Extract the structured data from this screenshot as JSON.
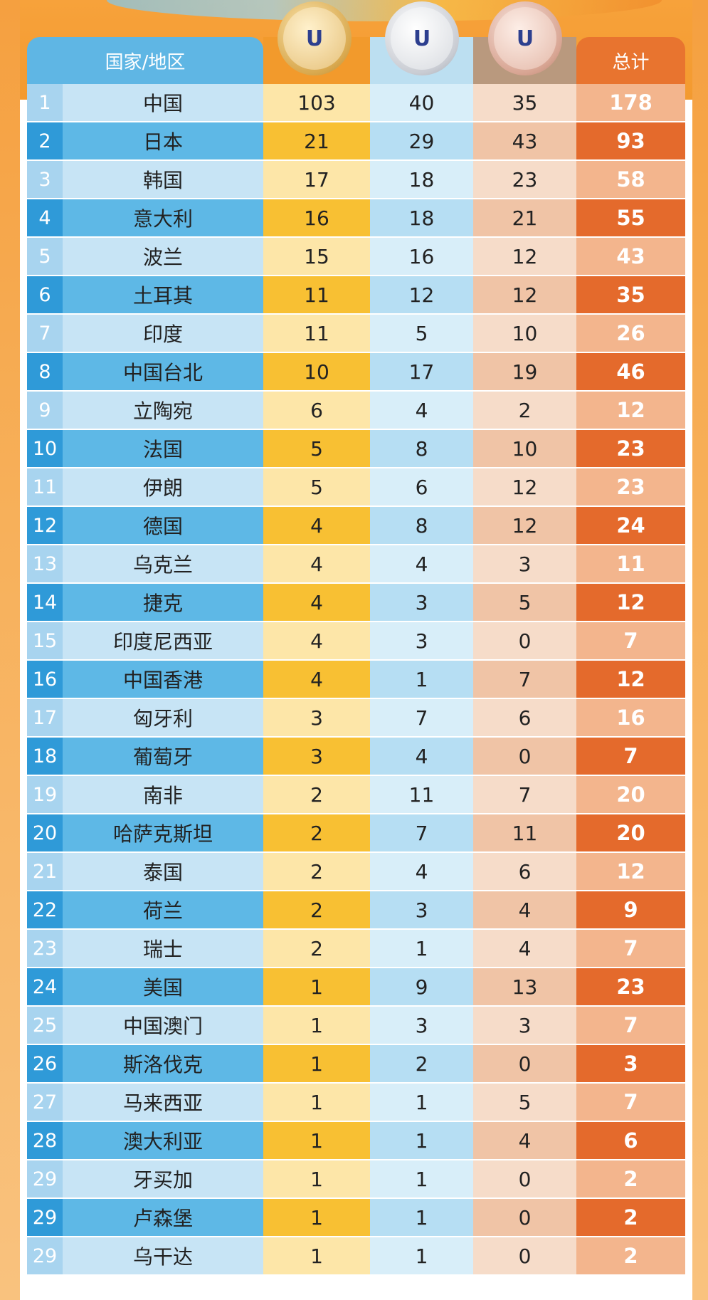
{
  "header": {
    "country": "国家/地区",
    "total": "总计",
    "medal_icons": [
      "gold-medal-icon",
      "silver-medal-icon",
      "bronze-medal-icon"
    ]
  },
  "colors": {
    "blue_header": "#5fb6e4",
    "gold": "#f8c033",
    "total_orange": "#e46a2c"
  },
  "rows": [
    {
      "rank": "1",
      "name": "中国",
      "gold": "103",
      "silver": "40",
      "bronze": "35",
      "total": "178"
    },
    {
      "rank": "2",
      "name": "日本",
      "gold": "21",
      "silver": "29",
      "bronze": "43",
      "total": "93"
    },
    {
      "rank": "3",
      "name": "韩国",
      "gold": "17",
      "silver": "18",
      "bronze": "23",
      "total": "58"
    },
    {
      "rank": "4",
      "name": "意大利",
      "gold": "16",
      "silver": "18",
      "bronze": "21",
      "total": "55"
    },
    {
      "rank": "5",
      "name": "波兰",
      "gold": "15",
      "silver": "16",
      "bronze": "12",
      "total": "43"
    },
    {
      "rank": "6",
      "name": "土耳其",
      "gold": "11",
      "silver": "12",
      "bronze": "12",
      "total": "35"
    },
    {
      "rank": "7",
      "name": "印度",
      "gold": "11",
      "silver": "5",
      "bronze": "10",
      "total": "26"
    },
    {
      "rank": "8",
      "name": "中国台北",
      "gold": "10",
      "silver": "17",
      "bronze": "19",
      "total": "46"
    },
    {
      "rank": "9",
      "name": "立陶宛",
      "gold": "6",
      "silver": "4",
      "bronze": "2",
      "total": "12"
    },
    {
      "rank": "10",
      "name": "法国",
      "gold": "5",
      "silver": "8",
      "bronze": "10",
      "total": "23"
    },
    {
      "rank": "11",
      "name": "伊朗",
      "gold": "5",
      "silver": "6",
      "bronze": "12",
      "total": "23"
    },
    {
      "rank": "12",
      "name": "德国",
      "gold": "4",
      "silver": "8",
      "bronze": "12",
      "total": "24"
    },
    {
      "rank": "13",
      "name": "乌克兰",
      "gold": "4",
      "silver": "4",
      "bronze": "3",
      "total": "11"
    },
    {
      "rank": "14",
      "name": "捷克",
      "gold": "4",
      "silver": "3",
      "bronze": "5",
      "total": "12"
    },
    {
      "rank": "15",
      "name": "印度尼西亚",
      "gold": "4",
      "silver": "3",
      "bronze": "0",
      "total": "7"
    },
    {
      "rank": "16",
      "name": "中国香港",
      "gold": "4",
      "silver": "1",
      "bronze": "7",
      "total": "12"
    },
    {
      "rank": "17",
      "name": "匈牙利",
      "gold": "3",
      "silver": "7",
      "bronze": "6",
      "total": "16"
    },
    {
      "rank": "18",
      "name": "葡萄牙",
      "gold": "3",
      "silver": "4",
      "bronze": "0",
      "total": "7"
    },
    {
      "rank": "19",
      "name": "南非",
      "gold": "2",
      "silver": "11",
      "bronze": "7",
      "total": "20"
    },
    {
      "rank": "20",
      "name": "哈萨克斯坦",
      "gold": "2",
      "silver": "7",
      "bronze": "11",
      "total": "20"
    },
    {
      "rank": "21",
      "name": "泰国",
      "gold": "2",
      "silver": "4",
      "bronze": "6",
      "total": "12"
    },
    {
      "rank": "22",
      "name": "荷兰",
      "gold": "2",
      "silver": "3",
      "bronze": "4",
      "total": "9"
    },
    {
      "rank": "23",
      "name": "瑞士",
      "gold": "2",
      "silver": "1",
      "bronze": "4",
      "total": "7"
    },
    {
      "rank": "24",
      "name": "美国",
      "gold": "1",
      "silver": "9",
      "bronze": "13",
      "total": "23"
    },
    {
      "rank": "25",
      "name": "中国澳门",
      "gold": "1",
      "silver": "3",
      "bronze": "3",
      "total": "7"
    },
    {
      "rank": "26",
      "name": "斯洛伐克",
      "gold": "1",
      "silver": "2",
      "bronze": "0",
      "total": "3"
    },
    {
      "rank": "27",
      "name": "马来西亚",
      "gold": "1",
      "silver": "1",
      "bronze": "5",
      "total": "7"
    },
    {
      "rank": "28",
      "name": "澳大利亚",
      "gold": "1",
      "silver": "1",
      "bronze": "4",
      "total": "6"
    },
    {
      "rank": "29",
      "name": "牙买加",
      "gold": "1",
      "silver": "1",
      "bronze": "0",
      "total": "2"
    },
    {
      "rank": "29",
      "name": "卢森堡",
      "gold": "1",
      "silver": "1",
      "bronze": "0",
      "total": "2"
    },
    {
      "rank": "29",
      "name": "乌干达",
      "gold": "1",
      "silver": "1",
      "bronze": "0",
      "total": "2"
    }
  ]
}
